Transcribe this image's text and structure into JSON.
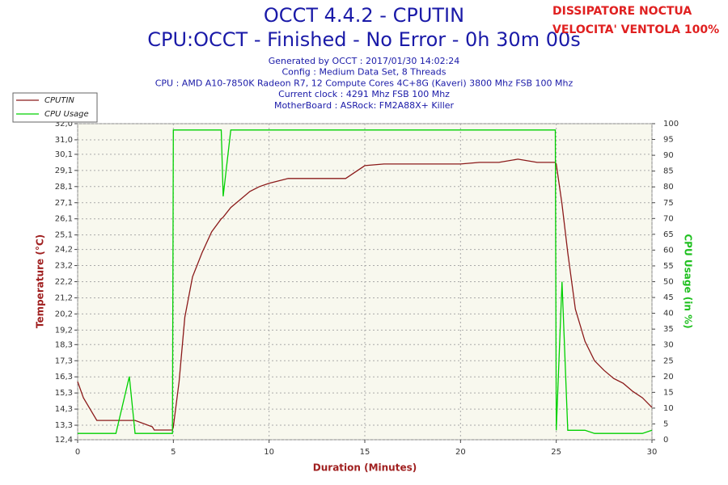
{
  "chart_data": {
    "type": "line",
    "title": "OCCT 4.4.2 - CPUTIN",
    "subtitle": "CPU:OCCT - Finished - No Error - 0h 30m 00s",
    "info": [
      "Generated by OCCT : 2017/01/30 14:02:24",
      "Config : Medium Data Set, 8 Threads",
      "CPU : AMD A10-7850K Radeon R7, 12 Compute Cores 4C+8G (Kaveri) 3800 Mhz FSB 100 Mhz",
      "Current clock : 4291 Mhz FSB 100 Mhz",
      "MotherBoard : ASRock: FM2A88X+ Killer"
    ],
    "annotations": [
      "DISSIPATORE NOCTUA",
      "VELOCITA' VENTOLA 100%"
    ],
    "xlabel": "Duration (Minutes)",
    "ylabel": "Temperature (°C)",
    "y2label": "CPU Usage (in %)",
    "x": [
      0,
      0.3,
      1,
      2,
      2.7,
      3,
      3.9,
      4,
      4.5,
      4.95,
      5,
      5.3,
      5.6,
      6,
      6.5,
      7,
      7.5,
      7.6,
      8,
      8.5,
      9,
      9.5,
      10,
      11,
      12,
      13,
      14,
      15,
      16,
      17,
      18,
      19,
      20,
      21,
      22,
      23,
      24,
      24.95,
      25,
      25.3,
      25.6,
      26,
      26.5,
      27,
      27.5,
      28,
      28.5,
      29,
      29.5,
      30
    ],
    "series": [
      {
        "name": "CPUTIN",
        "color": "#8b1a1a",
        "values": [
          16.0,
          15.0,
          13.6,
          13.6,
          13.6,
          13.6,
          13.2,
          13.0,
          13.0,
          13.0,
          13.2,
          16.0,
          20.0,
          22.5,
          24.0,
          25.3,
          26.1,
          26.2,
          26.8,
          27.3,
          27.8,
          28.1,
          28.3,
          28.6,
          28.6,
          28.6,
          28.6,
          29.4,
          29.5,
          29.5,
          29.5,
          29.5,
          29.5,
          29.6,
          29.6,
          29.8,
          29.6,
          29.6,
          29.5,
          27.0,
          24.0,
          20.5,
          18.5,
          17.3,
          16.7,
          16.2,
          15.9,
          15.4,
          15.0,
          14.4
        ]
      },
      {
        "name": "CPU Usage",
        "color": "#00d000",
        "axis": "y2",
        "values": [
          2,
          2,
          2,
          2,
          20,
          2,
          2,
          2,
          2,
          2,
          98,
          98,
          98,
          98,
          98,
          98,
          98,
          77,
          98,
          98,
          98,
          98,
          98,
          98,
          98,
          98,
          98,
          98,
          98,
          98,
          98,
          98,
          98,
          98,
          98,
          98,
          98,
          98,
          3,
          50,
          3,
          3,
          3,
          2,
          2,
          2,
          2,
          2,
          2,
          3
        ]
      }
    ],
    "xlim": [
      0,
      30
    ],
    "xticks": [
      0,
      5,
      10,
      15,
      20,
      25,
      30
    ],
    "ylim": [
      12.4,
      32.0
    ],
    "yticks": [
      {
        "value": 12.4,
        "label": "12,4"
      },
      {
        "value": 13.3,
        "label": "13,3"
      },
      {
        "value": 14.3,
        "label": "14,3"
      },
      {
        "value": 15.3,
        "label": "15,3"
      },
      {
        "value": 16.3,
        "label": "16,3"
      },
      {
        "value": 17.3,
        "label": "17,3"
      },
      {
        "value": 18.3,
        "label": "18,3"
      },
      {
        "value": 19.2,
        "label": "19,2"
      },
      {
        "value": 20.2,
        "label": "20,2"
      },
      {
        "value": 21.2,
        "label": "21,2"
      },
      {
        "value": 22.2,
        "label": "22,2"
      },
      {
        "value": 23.2,
        "label": "23,2"
      },
      {
        "value": 24.2,
        "label": "24,2"
      },
      {
        "value": 25.1,
        "label": "25,1"
      },
      {
        "value": 26.1,
        "label": "26,1"
      },
      {
        "value": 27.1,
        "label": "27,1"
      },
      {
        "value": 28.1,
        "label": "28,1"
      },
      {
        "value": 29.1,
        "label": "29,1"
      },
      {
        "value": 30.1,
        "label": "30,1"
      },
      {
        "value": 31.0,
        "label": "31,0"
      },
      {
        "value": 32.0,
        "label": "32,0"
      }
    ],
    "y2lim": [
      0,
      100
    ],
    "y2ticks": [
      0,
      5,
      10,
      15,
      20,
      25,
      30,
      35,
      40,
      45,
      50,
      55,
      60,
      65,
      70,
      75,
      80,
      85,
      90,
      95,
      100
    ],
    "grid": true
  }
}
